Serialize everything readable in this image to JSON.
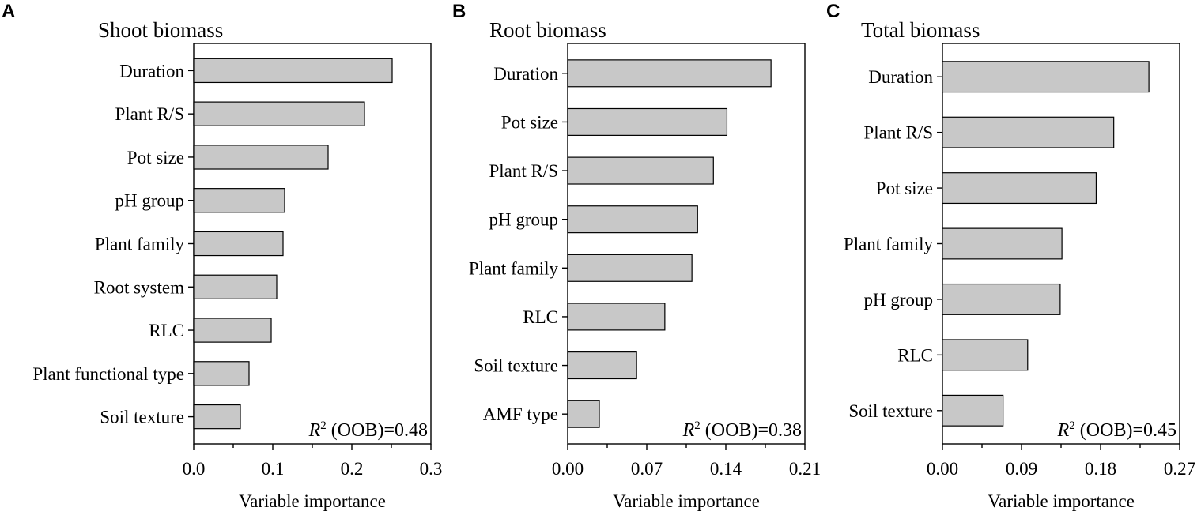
{
  "chart_data": [
    {
      "type": "bar",
      "orientation": "horizontal",
      "panel_label": "A",
      "title": "Shoot biomass",
      "categories": [
        "Duration",
        "Plant R/S",
        "Pot size",
        "pH group",
        "Plant family",
        "Root system",
        "RLC",
        "Plant functional type",
        "Soil texture"
      ],
      "values": [
        0.251,
        0.216,
        0.17,
        0.115,
        0.113,
        0.105,
        0.098,
        0.07,
        0.059
      ],
      "xlabel": "Variable importance",
      "xlim": [
        0,
        0.3
      ],
      "xticks": [
        "0.0",
        "0.1",
        "0.2",
        "0.3"
      ],
      "tick_values": [
        0,
        0.1,
        0.2,
        0.3
      ],
      "annotation_var": "R",
      "annotation_sup": "2",
      "annotation_text": " (OOB)=0.48"
    },
    {
      "type": "bar",
      "orientation": "horizontal",
      "panel_label": "B",
      "title": "Root biomass",
      "categories": [
        "Duration",
        "Pot size",
        "Plant R/S",
        "pH group",
        "Plant family",
        "RLC",
        "Soil texture",
        "AMF type"
      ],
      "values": [
        0.18,
        0.141,
        0.129,
        0.115,
        0.11,
        0.086,
        0.061,
        0.028
      ],
      "xlabel": "Variable importance",
      "xlim": [
        0,
        0.21
      ],
      "xticks": [
        "0.00",
        "0.07",
        "0.14",
        "0.21"
      ],
      "tick_values": [
        0,
        0.07,
        0.14,
        0.21
      ],
      "annotation_var": "R",
      "annotation_sup": "2",
      "annotation_text": " (OOB)=0.38"
    },
    {
      "type": "bar",
      "orientation": "horizontal",
      "panel_label": "C",
      "title": "Total biomass",
      "categories": [
        "Duration",
        "Plant R/S",
        "Pot size",
        "Plant family",
        "pH group",
        "RLC",
        "Soil texture"
      ],
      "values": [
        0.235,
        0.195,
        0.175,
        0.136,
        0.134,
        0.097,
        0.069
      ],
      "xlabel": "Variable importance",
      "xlim": [
        0,
        0.27
      ],
      "xticks": [
        "0.00",
        "0.09",
        "0.18",
        "0.27"
      ],
      "tick_values": [
        0,
        0.09,
        0.18,
        0.27
      ],
      "annotation_var": "R",
      "annotation_sup": "2",
      "annotation_text": " (OOB)=0.45"
    }
  ],
  "colors": {
    "bar_fill": "#c8c8c8",
    "bar_stroke": "#000000",
    "axis": "#000000"
  }
}
